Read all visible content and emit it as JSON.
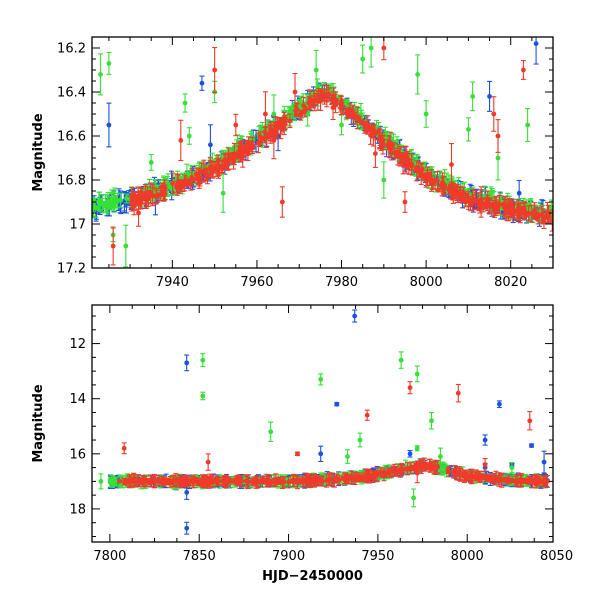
{
  "chart_data": [
    {
      "type": "scatter",
      "panel": "top",
      "xlabel": "",
      "ylabel": "Magnitude",
      "xlim": [
        7921,
        8030
      ],
      "ylim": [
        17.2,
        16.15
      ],
      "y_inverted": true,
      "grid": false,
      "xticks": [
        7940,
        7960,
        7980,
        8000,
        8020
      ],
      "xticklabels": [
        "7940",
        "7960",
        "7980",
        "8000",
        "8020"
      ],
      "yticks": [
        16.2,
        16.4,
        16.6,
        16.8,
        17.0,
        17.2
      ],
      "yticklabels": [
        "16.2",
        "16.4",
        "16.6",
        "16.8",
        "17",
        "17.2"
      ],
      "series": [
        {
          "color": "#1a52e0",
          "baseline_x": [
            7921,
            7930,
            7940,
            7950,
            7960,
            7970,
            7976,
            7980,
            7990,
            8000,
            8010,
            8020,
            8030
          ],
          "baseline_y": [
            16.93,
            16.89,
            16.83,
            16.74,
            16.62,
            16.48,
            16.4,
            16.45,
            16.62,
            16.78,
            16.88,
            16.93,
            16.96
          ],
          "outliers": [
            [
              7925,
              16.55
            ],
            [
              7936,
              16.88
            ],
            [
              7947,
              16.36
            ],
            [
              7949,
              16.64
            ],
            [
              7965,
              16.6
            ],
            [
              7972,
              16.45
            ],
            [
              8015,
              16.42
            ],
            [
              8022,
              16.86
            ],
            [
              8026,
              16.18
            ]
          ]
        },
        {
          "color": "#36e036",
          "baseline_x": [
            7921,
            7930,
            7940,
            7950,
            7960,
            7970,
            7976,
            7980,
            7990,
            8000,
            8010,
            8020,
            8030
          ],
          "baseline_y": [
            16.92,
            16.88,
            16.82,
            16.73,
            16.61,
            16.47,
            16.39,
            16.44,
            16.61,
            16.77,
            16.87,
            16.92,
            16.95
          ],
          "outliers": [
            [
              7923,
              16.32
            ],
            [
              7925,
              16.27
            ],
            [
              7926,
              17.05
            ],
            [
              7929,
              17.1
            ],
            [
              7935,
              16.72
            ],
            [
              7943,
              16.45
            ],
            [
              7944,
              16.6
            ],
            [
              7950,
              16.4
            ],
            [
              7952,
              16.86
            ],
            [
              7964,
              16.5
            ],
            [
              7972,
              16.5
            ],
            [
              7974,
              16.3
            ],
            [
              7980,
              16.55
            ],
            [
              7985,
              16.25
            ],
            [
              7987,
              16.2
            ],
            [
              7990,
              16.8
            ],
            [
              7998,
              16.32
            ],
            [
              8000,
              16.5
            ],
            [
              8010,
              16.57
            ],
            [
              8011,
              16.42
            ],
            [
              8017,
              16.7
            ],
            [
              8020,
              16.95
            ],
            [
              8024,
              16.55
            ]
          ]
        },
        {
          "color": "#f03a2a",
          "baseline_x": [
            7930,
            7940,
            7950,
            7960,
            7970,
            7976,
            7980,
            7990,
            8000,
            8010,
            8020,
            8030
          ],
          "baseline_y": [
            16.9,
            16.84,
            16.75,
            16.63,
            16.49,
            16.41,
            16.46,
            16.63,
            16.79,
            16.89,
            16.94,
            16.97
          ],
          "outliers": [
            [
              7926,
              17.1
            ],
            [
              7932,
              16.95
            ],
            [
              7942,
              16.62
            ],
            [
              7950,
              16.3
            ],
            [
              7955,
              16.55
            ],
            [
              7962,
              16.5
            ],
            [
              7964,
              16.62
            ],
            [
              7966,
              16.9
            ],
            [
              7969,
              16.4
            ],
            [
              7978,
              16.47
            ],
            [
              7988,
              16.68
            ],
            [
              7990,
              16.2
            ],
            [
              7995,
              16.9
            ],
            [
              8006,
              16.73
            ],
            [
              8013,
              16.9
            ],
            [
              8016,
              16.5
            ],
            [
              8017,
              16.6
            ],
            [
              8023,
              16.3
            ]
          ]
        }
      ]
    },
    {
      "type": "scatter",
      "panel": "bottom",
      "xlabel": "HJD−2450000",
      "ylabel": "Magnitude",
      "xlim": [
        7790,
        8048
      ],
      "ylim": [
        19.2,
        10.6
      ],
      "y_inverted": true,
      "grid": false,
      "xticks": [
        7800,
        7850,
        7900,
        7950,
        8000,
        8050
      ],
      "xticklabels": [
        "7800",
        "7850",
        "7900",
        "7950",
        "8000",
        "8050"
      ],
      "yticks": [
        12,
        14,
        16,
        18
      ],
      "yticklabels": [
        "12",
        "14",
        "16",
        "18"
      ],
      "series": [
        {
          "color": "#1a52e0",
          "baseline_x": [
            7800,
            7850,
            7900,
            7920,
            7940,
            7960,
            7976,
            7990,
            8000,
            8010,
            8020,
            8030,
            8045
          ],
          "baseline_y": [
            17.0,
            17.0,
            17.0,
            16.95,
            16.85,
            16.62,
            16.4,
            16.62,
            16.78,
            16.88,
            16.93,
            16.96,
            17.0
          ],
          "outliers": [
            [
              7843,
              12.7
            ],
            [
              7843,
              17.4
            ],
            [
              7843,
              18.7
            ],
            [
              7937,
              11.0
            ],
            [
              7927,
              14.2
            ],
            [
              7918,
              16.0
            ],
            [
              7968,
              16.0
            ],
            [
              8010,
              15.5
            ],
            [
              8010,
              16.5
            ],
            [
              8018,
              14.2
            ],
            [
              8025,
              16.4
            ],
            [
              8036,
              15.7
            ],
            [
              8043,
              16.3
            ]
          ]
        },
        {
          "color": "#36e036",
          "baseline_x": [
            7800,
            7850,
            7900,
            7920,
            7940,
            7960,
            7976,
            7990,
            8000,
            8010,
            8020,
            8030,
            8045
          ],
          "baseline_y": [
            17.0,
            17.0,
            17.0,
            16.94,
            16.84,
            16.6,
            16.39,
            16.6,
            16.77,
            16.87,
            16.92,
            16.95,
            16.99
          ],
          "outliers": [
            [
              7795,
              17.0
            ],
            [
              7852,
              12.6
            ],
            [
              7852,
              13.9
            ],
            [
              7890,
              15.2
            ],
            [
              7918,
              13.3
            ],
            [
              7933,
              16.1
            ],
            [
              7940,
              15.5
            ],
            [
              7963,
              12.6
            ],
            [
              7972,
              13.1
            ],
            [
              7972,
              15.8
            ],
            [
              7970,
              17.6
            ],
            [
              7980,
              14.8
            ],
            [
              7985,
              16.1
            ],
            [
              8025,
              16.5
            ]
          ]
        },
        {
          "color": "#f03a2a",
          "baseline_x": [
            7805,
            7850,
            7900,
            7920,
            7940,
            7960,
            7976,
            7990,
            8000,
            8010,
            8020,
            8030,
            8045
          ],
          "baseline_y": [
            17.0,
            17.0,
            17.0,
            16.96,
            16.86,
            16.63,
            16.41,
            16.63,
            16.79,
            16.89,
            16.94,
            16.97,
            17.01
          ],
          "outliers": [
            [
              7808,
              15.8
            ],
            [
              7855,
              16.3
            ],
            [
              7905,
              16.0
            ],
            [
              7944,
              14.6
            ],
            [
              7968,
              13.6
            ],
            [
              7995,
              13.8
            ],
            [
              7972,
              16.7
            ],
            [
              8010,
              16.4
            ],
            [
              8035,
              14.8
            ]
          ]
        }
      ]
    }
  ]
}
